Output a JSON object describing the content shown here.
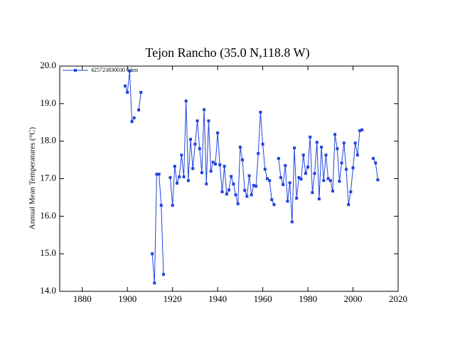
{
  "chart_data": {
    "type": "line",
    "title": "Tejon Rancho (35.0 N,118.8 W)",
    "ylabel": "Annual Mean Temperatures (°C)",
    "legend_position": "upper left",
    "xlim": [
      1870,
      2020
    ],
    "ylim": [
      14.0,
      20.0
    ],
    "xticks": [
      1880,
      1900,
      1920,
      1940,
      1960,
      1980,
      2000,
      2020
    ],
    "yticks": [
      {
        "value": 14,
        "label": "14.0"
      },
      {
        "value": 15,
        "label": "15.0"
      },
      {
        "value": 16,
        "label": "16.0"
      },
      {
        "value": 17,
        "label": "17.0"
      },
      {
        "value": 18,
        "label": "18.0"
      },
      {
        "value": 19,
        "label": "19.0"
      },
      {
        "value": 20,
        "label": "20.0"
      }
    ],
    "x": [
      1899,
      1900,
      1901,
      1902,
      1903,
      1904,
      1905,
      1906,
      1907,
      1911,
      1912,
      1913,
      1914,
      1915,
      1916,
      1917,
      1919,
      1920,
      1921,
      1922,
      1923,
      1924,
      1925,
      1926,
      1927,
      1928,
      1929,
      1930,
      1931,
      1932,
      1933,
      1934,
      1935,
      1936,
      1937,
      1938,
      1939,
      1940,
      1941,
      1942,
      1943,
      1944,
      1945,
      1946,
      1947,
      1948,
      1949,
      1950,
      1951,
      1952,
      1953,
      1954,
      1955,
      1956,
      1957,
      1958,
      1959,
      1960,
      1961,
      1962,
      1963,
      1964,
      1965,
      1966,
      1967,
      1968,
      1969,
      1970,
      1971,
      1972,
      1973,
      1974,
      1975,
      1976,
      1977,
      1978,
      1979,
      1980,
      1981,
      1982,
      1983,
      1984,
      1985,
      1986,
      1987,
      1988,
      1989,
      1990,
      1991,
      1992,
      1993,
      1994,
      1995,
      1996,
      1997,
      1998,
      1999,
      2000,
      2001,
      2002,
      2003,
      2004,
      2005,
      2009,
      2010,
      2011
    ],
    "series": [
      {
        "name": "425723830030 0 km",
        "color": "#2244dd",
        "values": [
          19.47,
          19.3,
          19.87,
          18.52,
          18.62,
          null,
          18.83,
          19.3,
          null,
          15.0,
          14.22,
          17.12,
          17.12,
          16.29,
          14.45,
          null,
          17.03,
          16.29,
          17.33,
          16.88,
          17.05,
          17.63,
          17.05,
          19.07,
          16.95,
          18.05,
          17.27,
          17.92,
          18.54,
          17.8,
          17.16,
          18.84,
          16.86,
          18.54,
          17.2,
          17.44,
          17.39,
          18.22,
          17.37,
          16.65,
          17.33,
          16.59,
          16.7,
          17.06,
          16.86,
          16.57,
          16.33,
          17.84,
          17.5,
          16.69,
          16.53,
          17.08,
          16.57,
          16.82,
          16.8,
          17.67,
          18.77,
          17.92,
          17.25,
          17.0,
          16.95,
          16.44,
          16.31,
          null,
          17.54,
          17.03,
          16.84,
          17.35,
          16.4,
          16.89,
          15.85,
          17.82,
          16.48,
          17.03,
          16.99,
          17.63,
          17.14,
          17.31,
          18.11,
          16.63,
          17.14,
          17.97,
          16.46,
          17.84,
          16.95,
          17.63,
          17.0,
          16.95,
          16.67,
          18.18,
          17.8,
          16.93,
          17.42,
          17.95,
          17.25,
          16.31,
          16.65,
          17.29,
          17.95,
          17.63,
          18.28,
          18.3,
          null,
          17.54,
          17.42,
          16.97
        ]
      }
    ]
  }
}
